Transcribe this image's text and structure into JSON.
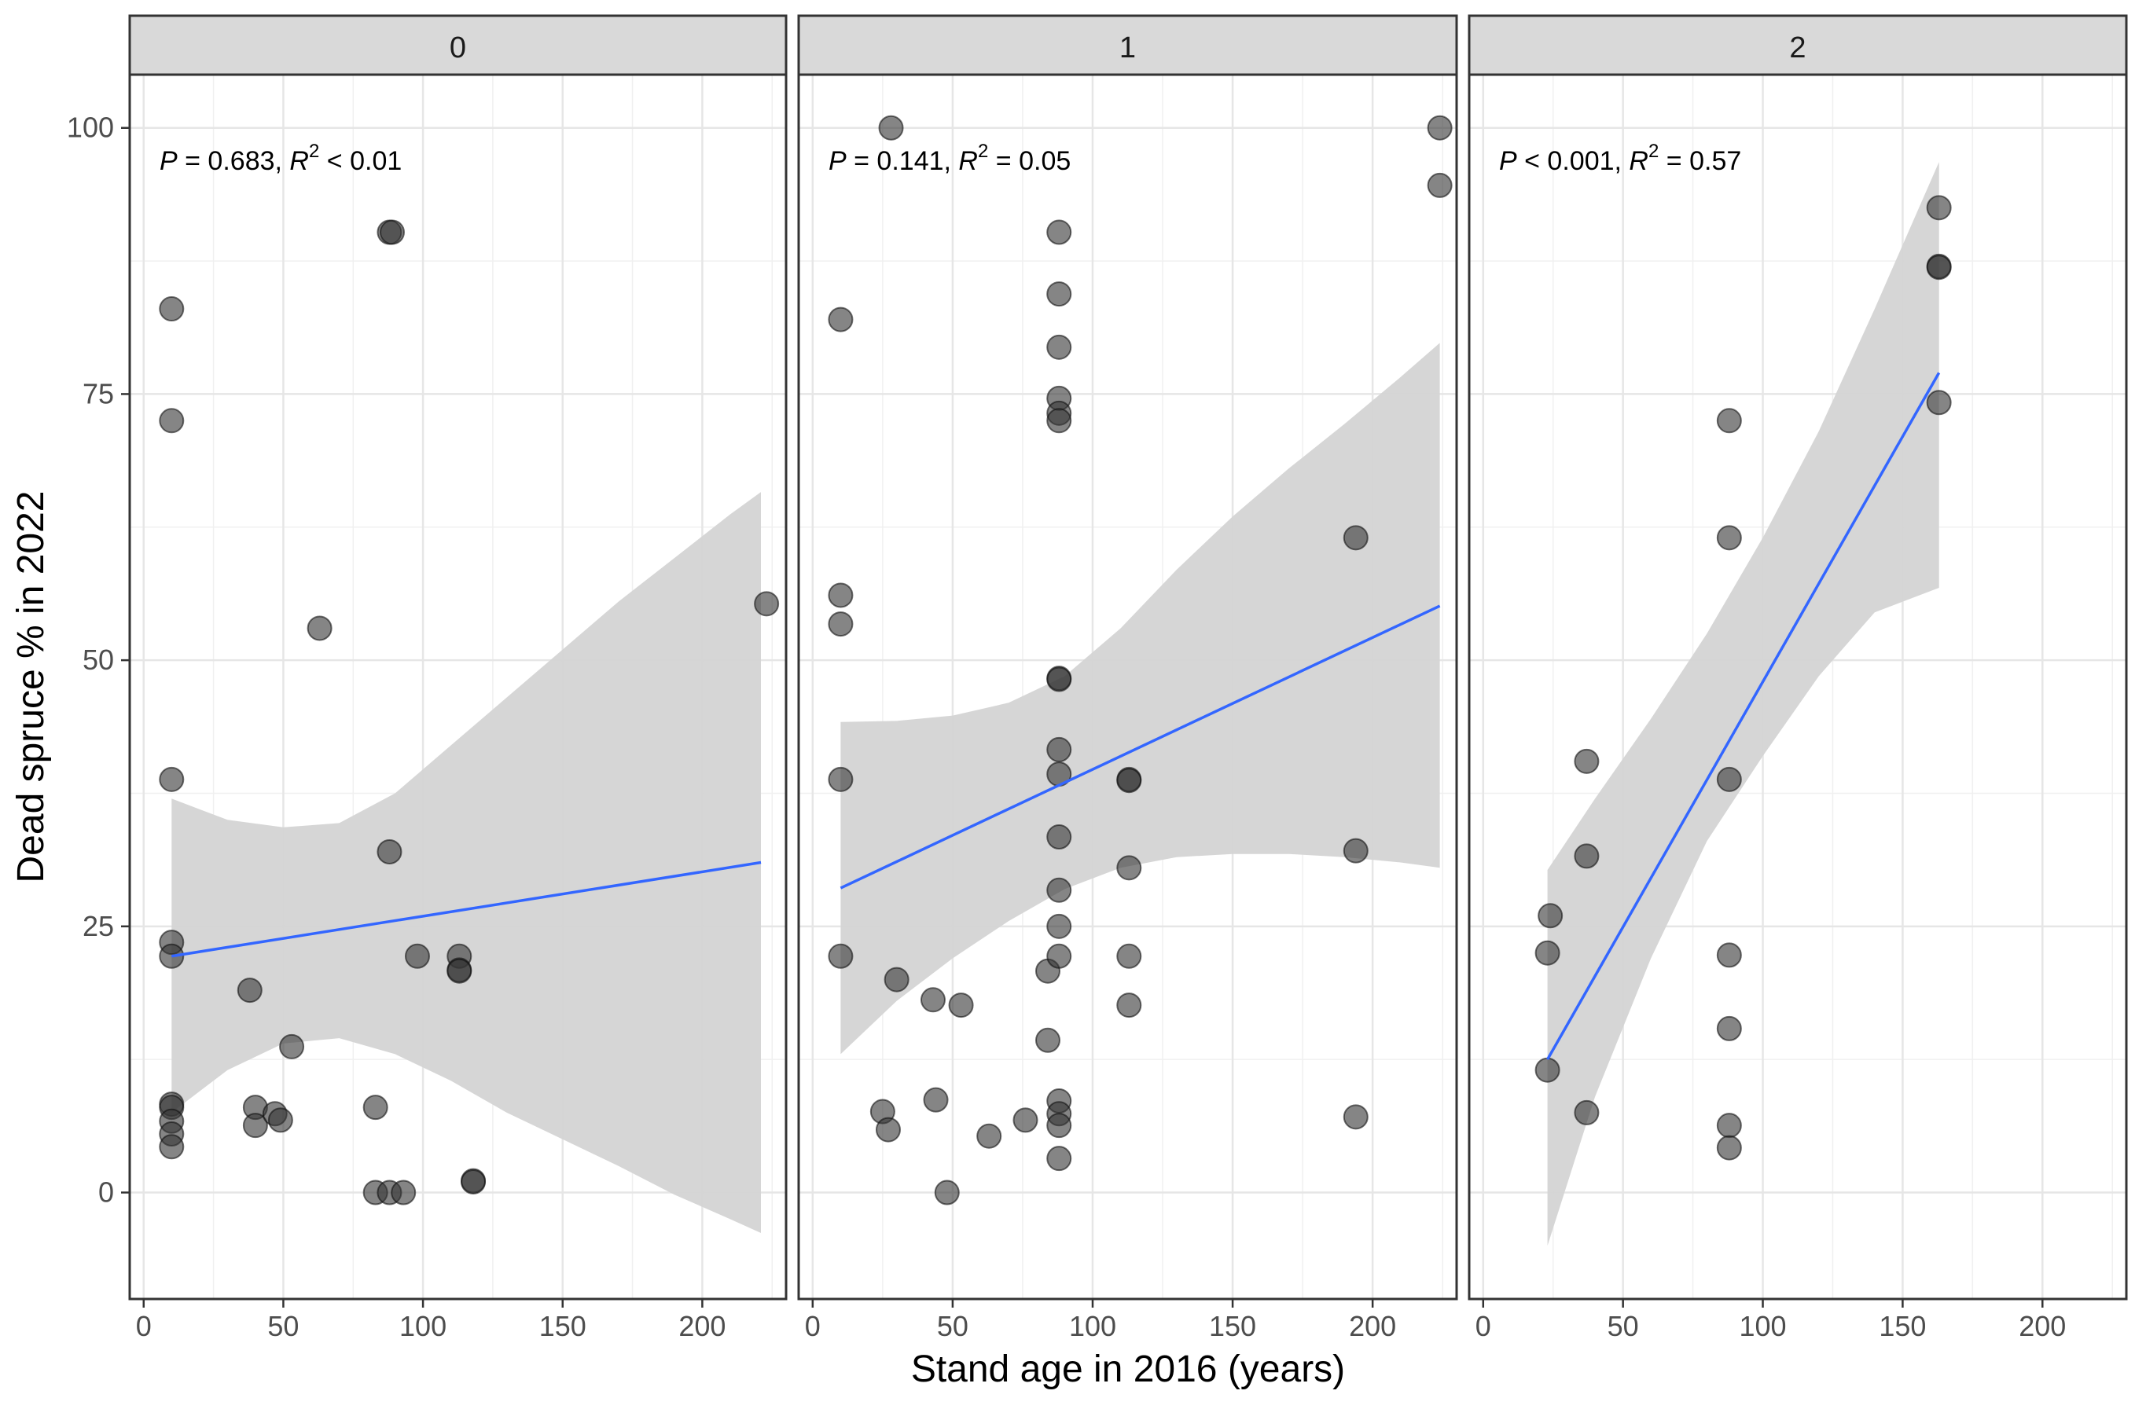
{
  "chart_data": {
    "type": "scatter",
    "xlabel": "Stand age in 2016 (years)",
    "ylabel": "Dead spruce % in 2022",
    "xlim": [
      -5,
      230
    ],
    "ylim": [
      -10,
      105
    ],
    "x_ticks": [
      0,
      50,
      100,
      150,
      200
    ],
    "y_ticks": [
      0,
      25,
      50,
      75,
      100
    ],
    "grid": true,
    "point_color": "#333333",
    "line_color": "#3366FF",
    "band_color": "#d4d4d4",
    "strip_color": "#d9d9d9",
    "panels": [
      {
        "label": "0",
        "annotation": {
          "p_label": "P",
          "p_rel": " = 0.683, ",
          "r_label": "R",
          "r_exp": "2",
          "r_rel": " < 0.01"
        },
        "points": [
          {
            "x": 10,
            "y": 83
          },
          {
            "x": 10,
            "y": 72.5
          },
          {
            "x": 10,
            "y": 38.8
          },
          {
            "x": 10,
            "y": 23.5
          },
          {
            "x": 10,
            "y": 22.2
          },
          {
            "x": 10,
            "y": 8.3
          },
          {
            "x": 10,
            "y": 8
          },
          {
            "x": 10,
            "y": 6.7
          },
          {
            "x": 10,
            "y": 5.5
          },
          {
            "x": 10,
            "y": 4.3
          },
          {
            "x": 38,
            "y": 19
          },
          {
            "x": 40,
            "y": 8
          },
          {
            "x": 40,
            "y": 6.3
          },
          {
            "x": 47,
            "y": 7.4
          },
          {
            "x": 49,
            "y": 6.8
          },
          {
            "x": 53,
            "y": 13.7
          },
          {
            "x": 63,
            "y": 53
          },
          {
            "x": 83,
            "y": 8
          },
          {
            "x": 83,
            "y": 0
          },
          {
            "x": 88,
            "y": 0
          },
          {
            "x": 93,
            "y": 0
          },
          {
            "x": 88,
            "y": 90.2
          },
          {
            "x": 89,
            "y": 90.2
          },
          {
            "x": 88,
            "y": 32
          },
          {
            "x": 98,
            "y": 22.2
          },
          {
            "x": 113,
            "y": 22.2
          },
          {
            "x": 113,
            "y": 20.9
          },
          {
            "x": 113,
            "y": 20.8
          },
          {
            "x": 118,
            "y": 1.1
          },
          {
            "x": 118,
            "y": 1
          },
          {
            "x": 223,
            "y": 55.3
          }
        ],
        "fit": {
          "x0": 10,
          "y0": 22.2,
          "x1": 221,
          "y1": 31
        },
        "band": {
          "x": [
            10,
            30,
            50,
            70,
            90,
            110,
            130,
            150,
            170,
            190,
            210,
            221
          ],
          "upper": [
            37,
            35,
            34.3,
            34.7,
            37.5,
            42,
            46.5,
            51,
            55.5,
            59.6,
            63.7,
            65.8
          ],
          "lower": [
            7.5,
            11.5,
            14,
            14.5,
            13,
            10.5,
            7.5,
            5,
            2.5,
            -0.2,
            -2.5,
            -3.8
          ]
        }
      },
      {
        "label": "1",
        "annotation": {
          "p_label": "P",
          "p_rel": " = 0.141, ",
          "r_label": "R",
          "r_exp": "2",
          "r_rel": " = 0.05"
        },
        "points": [
          {
            "x": 28,
            "y": 100
          },
          {
            "x": 10,
            "y": 82
          },
          {
            "x": 10,
            "y": 56.1
          },
          {
            "x": 10,
            "y": 53.4
          },
          {
            "x": 10,
            "y": 38.8
          },
          {
            "x": 10,
            "y": 22.2
          },
          {
            "x": 25,
            "y": 7.6
          },
          {
            "x": 27,
            "y": 5.9
          },
          {
            "x": 30,
            "y": 20
          },
          {
            "x": 43,
            "y": 18.1
          },
          {
            "x": 44,
            "y": 8.7
          },
          {
            "x": 48,
            "y": 0
          },
          {
            "x": 53,
            "y": 17.6
          },
          {
            "x": 63,
            "y": 5.3
          },
          {
            "x": 76,
            "y": 6.8
          },
          {
            "x": 84,
            "y": 20.8
          },
          {
            "x": 84,
            "y": 14.3
          },
          {
            "x": 88,
            "y": 90.2
          },
          {
            "x": 88,
            "y": 84.4
          },
          {
            "x": 88,
            "y": 79.4
          },
          {
            "x": 88,
            "y": 74.6
          },
          {
            "x": 88,
            "y": 73.2
          },
          {
            "x": 88,
            "y": 72.5
          },
          {
            "x": 88,
            "y": 48.3
          },
          {
            "x": 88,
            "y": 48.2
          },
          {
            "x": 88,
            "y": 41.6
          },
          {
            "x": 88,
            "y": 39.3
          },
          {
            "x": 88,
            "y": 33.4
          },
          {
            "x": 88,
            "y": 28.4
          },
          {
            "x": 88,
            "y": 25
          },
          {
            "x": 88,
            "y": 22.2
          },
          {
            "x": 88,
            "y": 8.6
          },
          {
            "x": 88,
            "y": 7.4
          },
          {
            "x": 88,
            "y": 6.3
          },
          {
            "x": 88,
            "y": 3.2
          },
          {
            "x": 113,
            "y": 38.8
          },
          {
            "x": 113,
            "y": 38.7
          },
          {
            "x": 113,
            "y": 30.5
          },
          {
            "x": 113,
            "y": 22.2
          },
          {
            "x": 113,
            "y": 17.6
          },
          {
            "x": 194,
            "y": 61.5
          },
          {
            "x": 194,
            "y": 32.1
          },
          {
            "x": 194,
            "y": 7.1
          },
          {
            "x": 224,
            "y": 100
          },
          {
            "x": 224,
            "y": 94.6
          }
        ],
        "fit": {
          "x0": 10,
          "y0": 28.6,
          "x1": 224,
          "y1": 55.1
        },
        "band": {
          "x": [
            10,
            30,
            50,
            70,
            90,
            110,
            130,
            150,
            170,
            190,
            210,
            224
          ],
          "upper": [
            44.2,
            44.3,
            44.8,
            46,
            48.5,
            53,
            58.5,
            63.5,
            68,
            72.2,
            76.6,
            79.8
          ],
          "lower": [
            13,
            18,
            22,
            25.5,
            28.5,
            30.5,
            31.5,
            31.8,
            31.8,
            31.5,
            31,
            30.5
          ]
        }
      },
      {
        "label": "2",
        "annotation": {
          "p_label": "P",
          "p_rel": " < 0.001, ",
          "r_label": "R",
          "r_exp": "2",
          "r_rel": " = 0.57"
        },
        "points": [
          {
            "x": 23,
            "y": 22.5
          },
          {
            "x": 23,
            "y": 11.5
          },
          {
            "x": 24,
            "y": 26
          },
          {
            "x": 37,
            "y": 40.5
          },
          {
            "x": 37,
            "y": 31.6
          },
          {
            "x": 37,
            "y": 7.5
          },
          {
            "x": 88,
            "y": 72.5
          },
          {
            "x": 88,
            "y": 61.5
          },
          {
            "x": 88,
            "y": 38.8
          },
          {
            "x": 88,
            "y": 22.3
          },
          {
            "x": 88,
            "y": 15.4
          },
          {
            "x": 88,
            "y": 6.3
          },
          {
            "x": 88,
            "y": 4.2
          },
          {
            "x": 163,
            "y": 92.5
          },
          {
            "x": 163,
            "y": 87
          },
          {
            "x": 163,
            "y": 86.9
          },
          {
            "x": 163,
            "y": 74.2
          }
        ],
        "fit": {
          "x0": 23,
          "y0": 12.5,
          "x1": 163,
          "y1": 77
        },
        "band": {
          "x": [
            23,
            40,
            60,
            80,
            100,
            120,
            140,
            163
          ],
          "upper": [
            30.3,
            37,
            44.5,
            52.5,
            61.5,
            71.5,
            83,
            96.8
          ],
          "lower": [
            -5,
            9,
            22,
            33,
            41,
            48.5,
            54.5,
            56.8
          ]
        }
      }
    ]
  }
}
